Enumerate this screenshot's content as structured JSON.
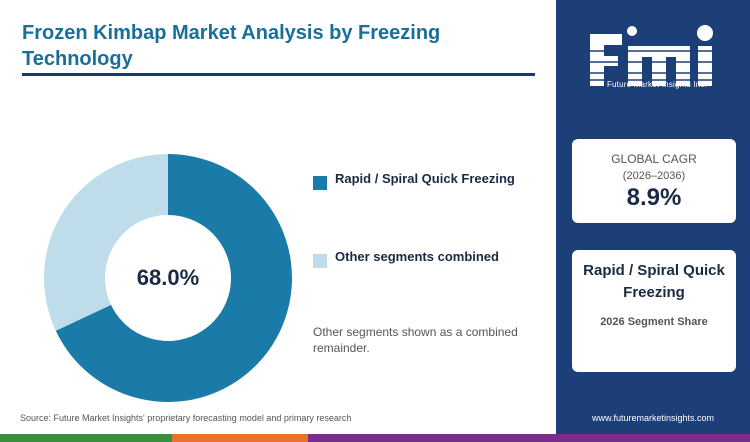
{
  "title": "Frozen Kimbap Market Analysis by Freezing Technology",
  "chart_data": {
    "type": "pie",
    "donut": true,
    "center_label": "68.0%",
    "slices": [
      {
        "label": "Rapid / Spiral Quick Freezing",
        "value": 68.0,
        "color": "#1a7ba8"
      },
      {
        "label": "Other segments combined",
        "value": 32.0,
        "color": "#bfdcea"
      }
    ],
    "legend_position": "right"
  },
  "note": "Other segments shown as a combined remainder.",
  "source": "Source: Future Market Insights' proprietary forecasting model and primary research",
  "sidebar": {
    "logo_letters": "fmi",
    "logo_tagline": "Future Market Insights Inc.",
    "cagr_card": {
      "title": "GLOBAL CAGR",
      "period": "(2026–2036)",
      "value": "8.9%"
    },
    "segment_card": {
      "name": "Rapid / Spiral Quick Freezing",
      "subtitle": "2026 Segment Share"
    },
    "website": "www.futuremarketinsights.com"
  },
  "colors": {
    "title": "#1a6f9a",
    "sidebar_bg": "#1d3f78",
    "bottom_bar": [
      "#3a8f3e",
      "#e8732a",
      "#7b2d8b"
    ]
  }
}
